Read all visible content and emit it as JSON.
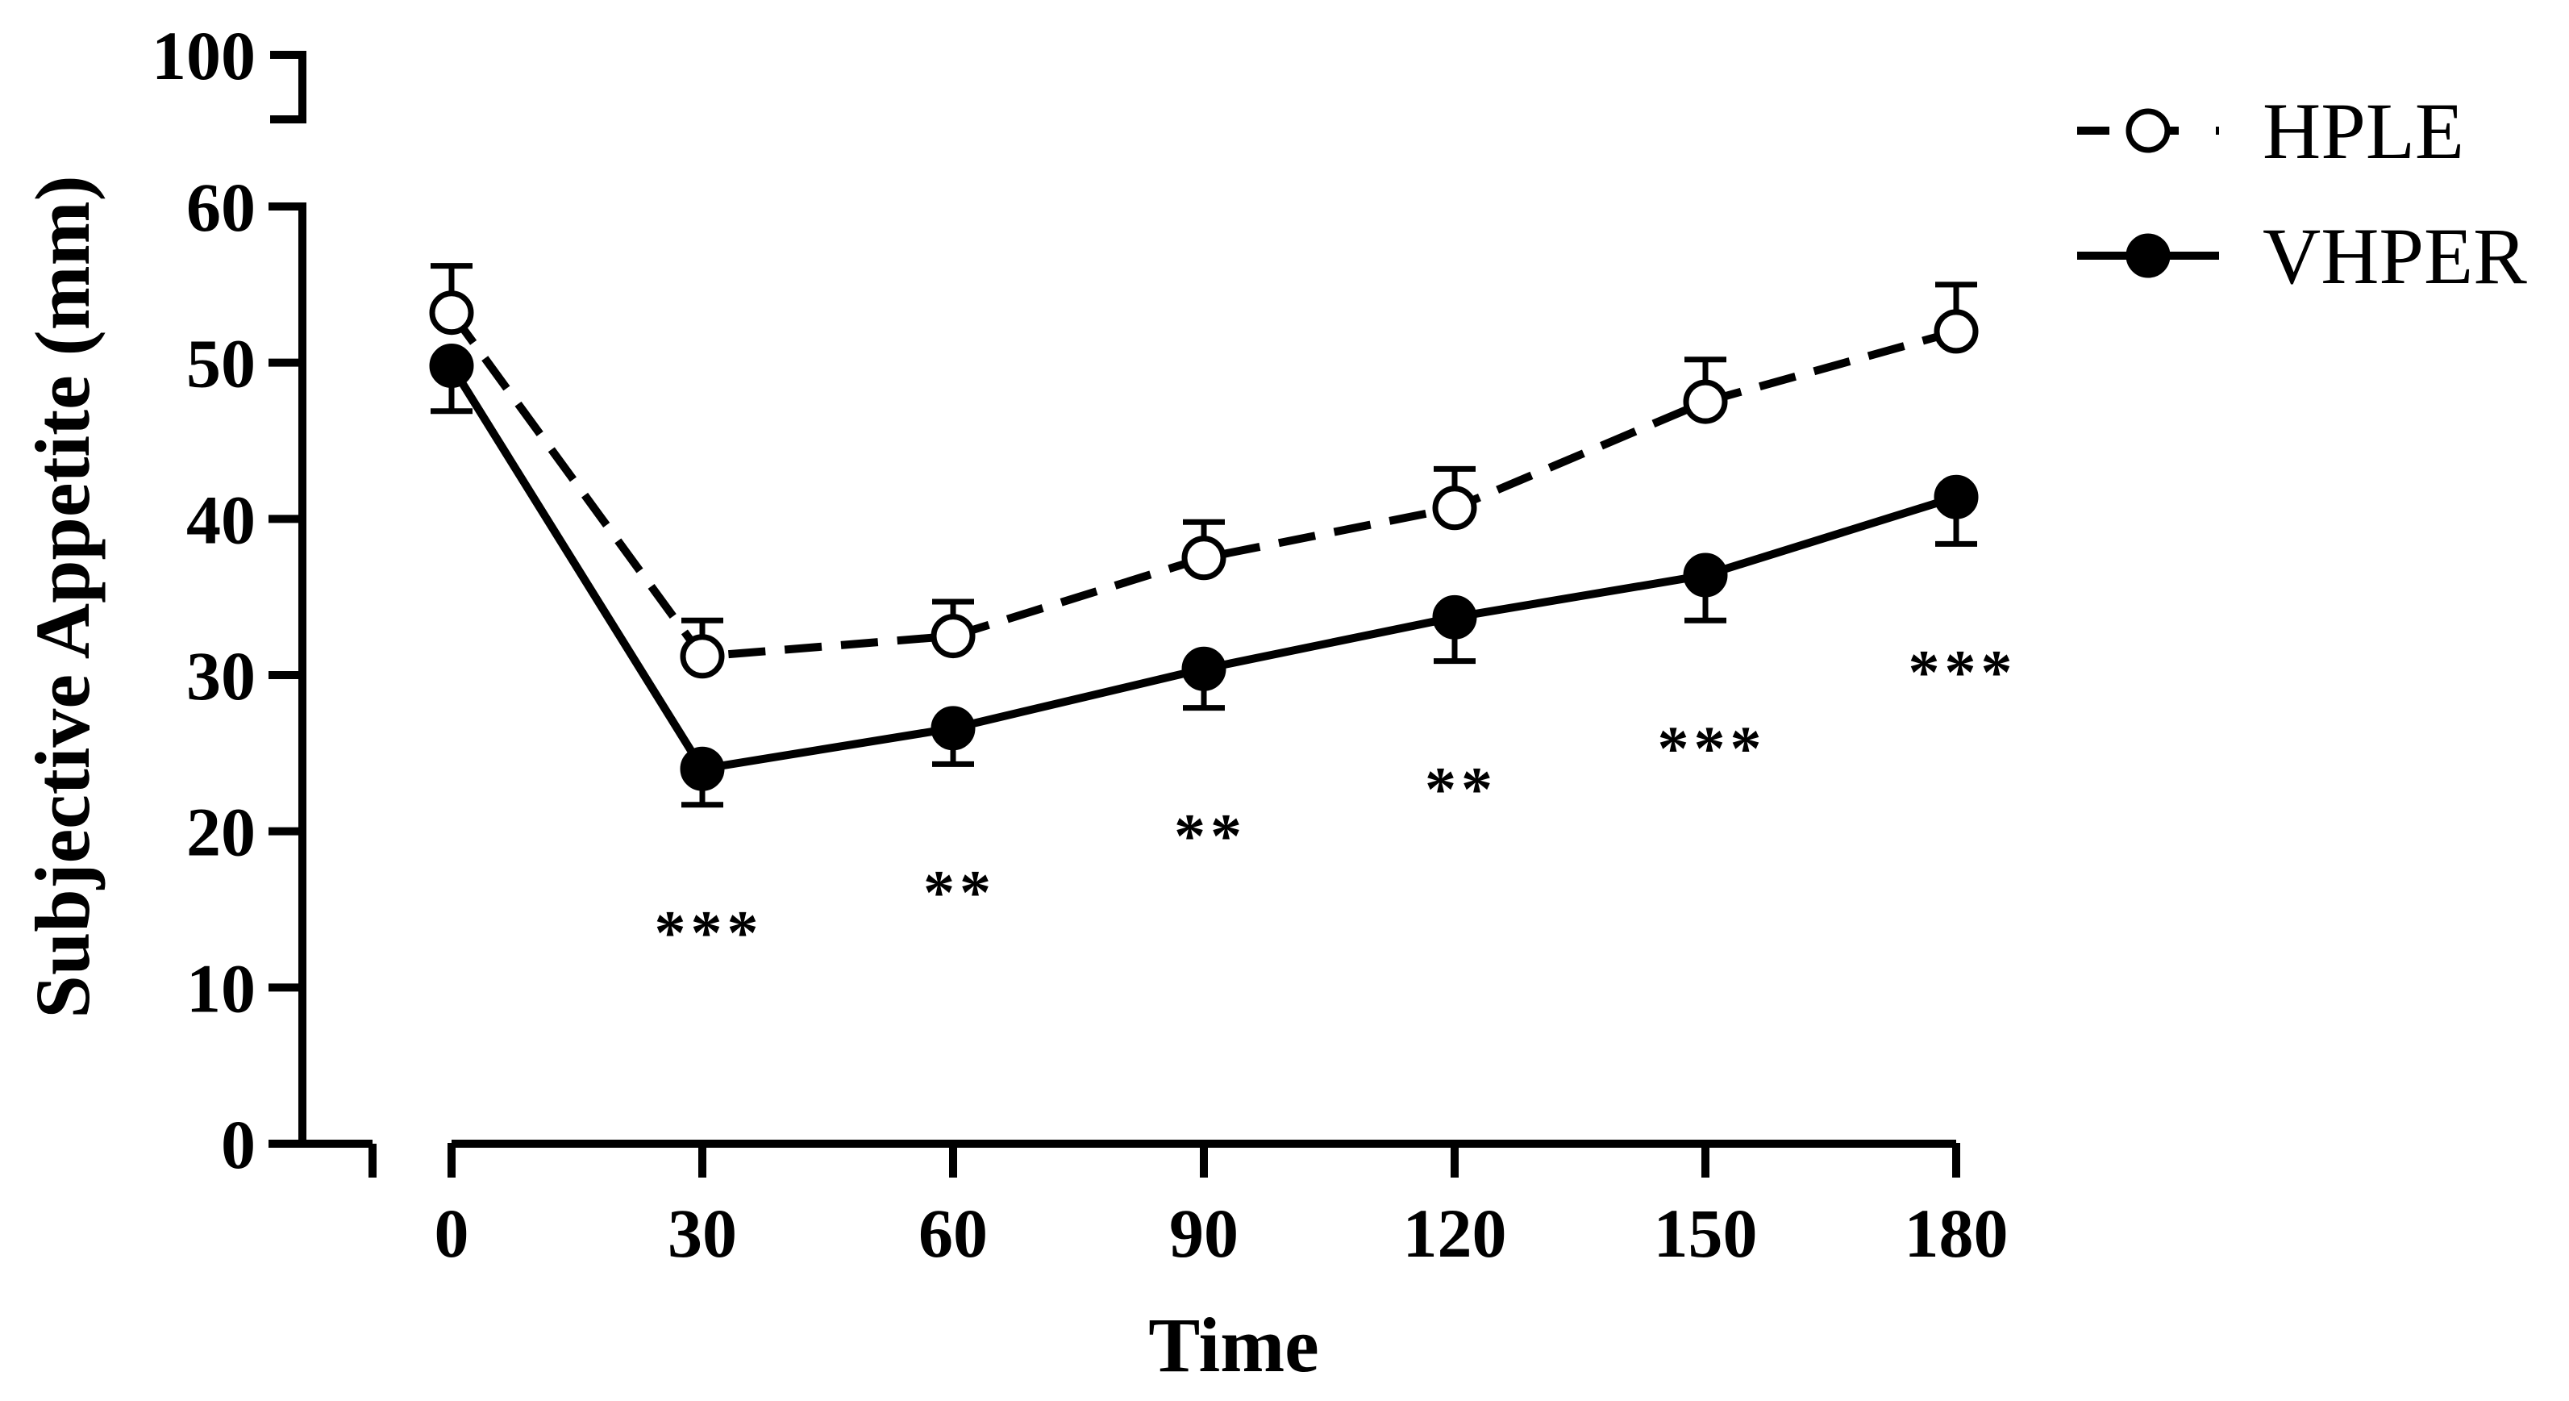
{
  "chart_data": {
    "type": "line",
    "title": "",
    "xlabel": "Time",
    "ylabel": "Subjective Appetite (mm)",
    "x": [
      0,
      30,
      60,
      90,
      120,
      150,
      180
    ],
    "x_tick_labels": [
      "0",
      "30",
      "60",
      "90",
      "120",
      "150",
      "180"
    ],
    "xlim": [
      0,
      180
    ],
    "y_tick_labels": [
      "0",
      "10",
      "20",
      "30",
      "40",
      "50",
      "60",
      "100"
    ],
    "ylim": [
      0,
      100
    ],
    "y_axis_break": [
      60,
      100
    ],
    "x_axis_break": true,
    "grid": false,
    "legend_position": "top-right",
    "series": [
      {
        "name": "HPLE",
        "marker": "open-circle",
        "line_style": "dashed",
        "values": [
          53.2,
          31.2,
          32.5,
          37.5,
          40.7,
          47.5,
          52.0
        ],
        "error": [
          3.0,
          2.3,
          2.2,
          2.3,
          2.5,
          2.7,
          3.0
        ],
        "error_direction": "up"
      },
      {
        "name": "VHPER",
        "marker": "filled-circle",
        "line_style": "solid",
        "values": [
          49.8,
          24.0,
          26.6,
          30.4,
          33.7,
          36.4,
          41.4
        ],
        "error": [
          2.9,
          2.3,
          2.3,
          2.5,
          2.8,
          2.9,
          3.0
        ],
        "error_direction": "down"
      }
    ],
    "significance": [
      "",
      "***",
      "**",
      "**",
      "**",
      "***",
      "***"
    ]
  },
  "colors": {
    "line": "#000000",
    "background": "#ffffff"
  }
}
